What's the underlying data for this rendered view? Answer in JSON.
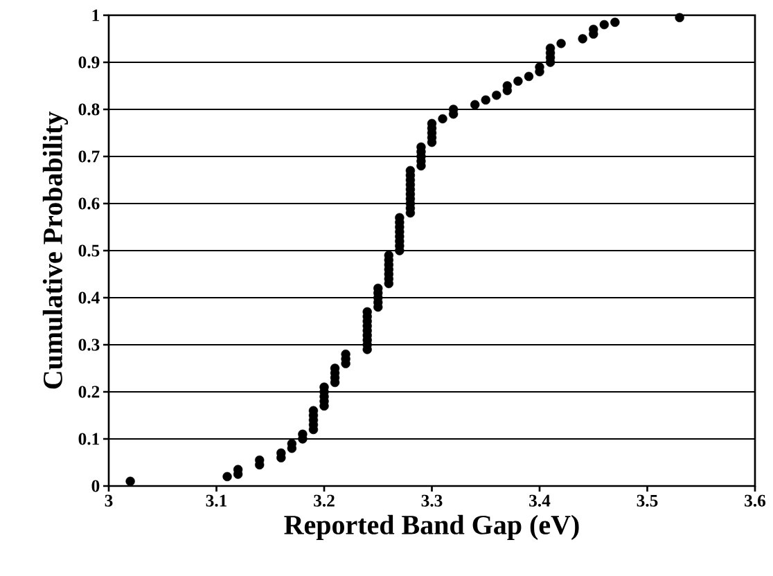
{
  "chart_data": {
    "type": "scatter",
    "xlabel": "Reported Band Gap (eV)",
    "ylabel": "Cumulative Probability",
    "x": [
      3.02,
      3.11,
      3.12,
      3.12,
      3.14,
      3.14,
      3.16,
      3.16,
      3.17,
      3.17,
      3.18,
      3.18,
      3.19,
      3.19,
      3.19,
      3.19,
      3.19,
      3.2,
      3.2,
      3.2,
      3.2,
      3.2,
      3.21,
      3.21,
      3.21,
      3.21,
      3.22,
      3.22,
      3.22,
      3.24,
      3.24,
      3.24,
      3.24,
      3.24,
      3.24,
      3.24,
      3.24,
      3.24,
      3.25,
      3.25,
      3.25,
      3.25,
      3.25,
      3.26,
      3.26,
      3.26,
      3.26,
      3.26,
      3.26,
      3.26,
      3.27,
      3.27,
      3.27,
      3.27,
      3.27,
      3.27,
      3.27,
      3.27,
      3.28,
      3.28,
      3.28,
      3.28,
      3.28,
      3.28,
      3.28,
      3.28,
      3.28,
      3.28,
      3.29,
      3.29,
      3.29,
      3.29,
      3.29,
      3.3,
      3.3,
      3.3,
      3.3,
      3.3,
      3.31,
      3.32,
      3.32,
      3.34,
      3.35,
      3.36,
      3.37,
      3.37,
      3.38,
      3.39,
      3.4,
      3.4,
      3.41,
      3.41,
      3.41,
      3.41,
      3.42,
      3.44,
      3.45,
      3.45,
      3.46,
      3.47,
      3.53
    ],
    "values": [
      0.01,
      0.02,
      0.025,
      0.035,
      0.045,
      0.055,
      0.06,
      0.07,
      0.08,
      0.09,
      0.1,
      0.11,
      0.12,
      0.13,
      0.14,
      0.15,
      0.16,
      0.17,
      0.18,
      0.19,
      0.2,
      0.21,
      0.22,
      0.23,
      0.24,
      0.25,
      0.26,
      0.27,
      0.28,
      0.29,
      0.3,
      0.31,
      0.32,
      0.33,
      0.34,
      0.35,
      0.36,
      0.37,
      0.38,
      0.39,
      0.4,
      0.41,
      0.42,
      0.43,
      0.44,
      0.45,
      0.46,
      0.47,
      0.48,
      0.49,
      0.5,
      0.51,
      0.52,
      0.53,
      0.54,
      0.55,
      0.56,
      0.57,
      0.58,
      0.59,
      0.6,
      0.61,
      0.62,
      0.63,
      0.64,
      0.65,
      0.66,
      0.67,
      0.68,
      0.69,
      0.7,
      0.71,
      0.72,
      0.73,
      0.74,
      0.75,
      0.76,
      0.77,
      0.78,
      0.79,
      0.8,
      0.81,
      0.82,
      0.83,
      0.84,
      0.85,
      0.86,
      0.87,
      0.88,
      0.89,
      0.9,
      0.91,
      0.92,
      0.93,
      0.94,
      0.95,
      0.96,
      0.97,
      0.98,
      0.985,
      0.995
    ],
    "color": "#000000",
    "marker": "circle",
    "grid": "y",
    "xlim": [
      3,
      3.6
    ],
    "xticks": [
      3,
      3.1,
      3.2,
      3.3,
      3.4,
      3.5,
      3.6
    ],
    "ylim": [
      0,
      1
    ],
    "yticks": [
      0,
      0.1,
      0.2,
      0.3,
      0.4,
      0.5,
      0.6,
      0.7,
      0.8,
      0.9,
      1
    ]
  }
}
